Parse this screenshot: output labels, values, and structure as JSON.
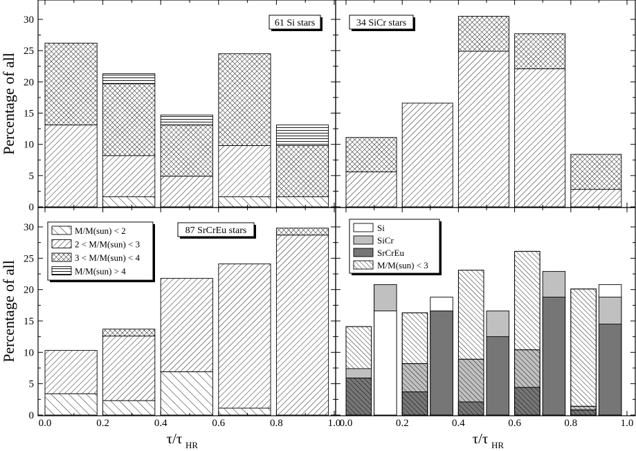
{
  "figure": {
    "xlabel_main": "τ/τ",
    "xlabel_sub": "HR",
    "ylabel": "Percentage of all",
    "x_ticks": [
      "0.0",
      "0.2",
      "0.4",
      "0.6",
      "0.8",
      "1.0"
    ],
    "y_ticks": [
      "0",
      "5",
      "10",
      "15",
      "20",
      "25",
      "30"
    ],
    "legend_mass": [
      {
        "label": "M/M(sun) < 2",
        "pattern": "diag-fwd"
      },
      {
        "label": "2 < M/M(sun) < 3",
        "pattern": "diag-back"
      },
      {
        "label": "3 < M/M(sun) < 4",
        "pattern": "crosshatch"
      },
      {
        "label": "M/M(sun) > 4",
        "pattern": "horizontal"
      }
    ],
    "legend_type": [
      {
        "label": "Si",
        "pattern": "white"
      },
      {
        "label": "SiCr",
        "pattern": "light-gray"
      },
      {
        "label": "SrCrEu",
        "pattern": "dark-gray"
      },
      {
        "label": "M/M(sun) < 3",
        "pattern": "diag-fwd-dense"
      }
    ],
    "colors": {
      "light_gray": "#c0c0c0",
      "dark_gray": "#767676",
      "ink": "#000000",
      "background": "#ffffff"
    }
  },
  "chart_data": [
    {
      "type": "bar",
      "stacked": true,
      "title": "61 Si stars",
      "ylim": [
        0,
        33
      ],
      "xlim": [
        0,
        1
      ],
      "bin_edges": [
        [
          0.0,
          0.18
        ],
        [
          0.2,
          0.38
        ],
        [
          0.4,
          0.58
        ],
        [
          0.6,
          0.78
        ],
        [
          0.8,
          0.98
        ]
      ],
      "series": [
        {
          "name": "M/M(sun) < 2",
          "values": [
            0,
            1.6,
            0,
            1.6,
            1.6
          ]
        },
        {
          "name": "2 < M/M(sun) < 3",
          "values": [
            13.1,
            6.6,
            4.9,
            8.2,
            0
          ]
        },
        {
          "name": "3 < M/M(sun) < 4",
          "values": [
            13.1,
            11.5,
            8.2,
            14.7,
            8.2
          ]
        },
        {
          "name": "M/M(sun) > 4",
          "values": [
            0,
            1.6,
            1.6,
            0,
            3.3
          ]
        }
      ]
    },
    {
      "type": "bar",
      "stacked": true,
      "title": "34 SiCr stars",
      "ylim": [
        0,
        33
      ],
      "xlim": [
        0,
        1
      ],
      "bin_edges": [
        [
          0.0,
          0.18
        ],
        [
          0.2,
          0.38
        ],
        [
          0.4,
          0.58
        ],
        [
          0.6,
          0.78
        ],
        [
          0.8,
          0.98
        ]
      ],
      "series": [
        {
          "name": "M/M(sun) < 2",
          "values": [
            0,
            0,
            0,
            0,
            0
          ]
        },
        {
          "name": "2 < M/M(sun) < 3",
          "values": [
            5.6,
            16.6,
            24.9,
            22.1,
            2.8
          ]
        },
        {
          "name": "3 < M/M(sun) < 4",
          "values": [
            5.5,
            0,
            5.6,
            5.6,
            5.6
          ]
        },
        {
          "name": "M/M(sun) > 4",
          "values": [
            0,
            0,
            0,
            0,
            0
          ]
        }
      ]
    },
    {
      "type": "bar",
      "stacked": true,
      "title": "87 SrCrEu stars",
      "ylim": [
        0,
        33
      ],
      "xlim": [
        0,
        1
      ],
      "bin_edges": [
        [
          0.0,
          0.18
        ],
        [
          0.2,
          0.38
        ],
        [
          0.4,
          0.58
        ],
        [
          0.6,
          0.78
        ],
        [
          0.8,
          0.98
        ]
      ],
      "series": [
        {
          "name": "M/M(sun) < 2",
          "values": [
            3.4,
            2.3,
            6.9,
            1.1,
            0
          ]
        },
        {
          "name": "2 < M/M(sun) < 3",
          "values": [
            6.9,
            10.3,
            14.9,
            23.0,
            28.7
          ]
        },
        {
          "name": "3 < M/M(sun) < 4",
          "values": [
            0,
            1.1,
            0,
            0,
            1.1
          ]
        },
        {
          "name": "M/M(sun) > 4",
          "values": [
            0,
            0,
            0,
            0,
            0
          ]
        }
      ]
    },
    {
      "type": "bar",
      "title": "",
      "ylim": [
        0,
        33
      ],
      "xlim": [
        0,
        1
      ],
      "groups": [
        {
          "x": [
            0.0,
            0.18
          ],
          "bars": [
            {
              "name": "Si",
              "edges": [
                0.0,
                0.09
              ],
              "total": 14.1,
              "low_mass": 14.1
            },
            {
              "name": "SiCr",
              "edges": [
                0.0,
                0.09
              ],
              "total": 7.4,
              "low_mass": 5.9
            },
            {
              "name": "SrCrEu",
              "edges": [
                0.0,
                0.09
              ],
              "total": 5.9,
              "low_mass": 5.9
            },
            {
              "name": "SrCrEu",
              "edges": [
                0.1,
                0.18
              ],
              "total": 20.8,
              "low_mass": 0
            },
            {
              "name": "SiCr",
              "edges": [
                0.1,
                0.18
              ],
              "total": 20.8,
              "low_mass": 0
            },
            {
              "name": "Si",
              "edges": [
                0.1,
                0.18
              ],
              "total": 16.6,
              "low_mass": 0
            }
          ]
        },
        {
          "x": [
            0.2,
            0.38
          ],
          "bars": [
            {
              "name": "Si",
              "edges": [
                0.2,
                0.29
              ],
              "total": 16.3,
              "low_mass": 16.3
            },
            {
              "name": "SiCr",
              "edges": [
                0.2,
                0.29
              ],
              "total": 8.2,
              "low_mass": 8.2
            },
            {
              "name": "SrCrEu",
              "edges": [
                0.2,
                0.29
              ],
              "total": 3.7,
              "low_mass": 3.7
            },
            {
              "name": "Si",
              "edges": [
                0.3,
                0.38
              ],
              "total": 18.8,
              "low_mass": 0
            },
            {
              "name": "SiCr",
              "edges": [
                0.3,
                0.38
              ],
              "total": 16.6,
              "low_mass": 0
            },
            {
              "name": "SrCrEu",
              "edges": [
                0.3,
                0.38
              ],
              "total": 16.6,
              "low_mass": 0
            }
          ]
        },
        {
          "x": [
            0.4,
            0.58
          ],
          "bars": [
            {
              "name": "Si",
              "edges": [
                0.4,
                0.49
              ],
              "total": 23.1,
              "low_mass": 23.1
            },
            {
              "name": "SiCr",
              "edges": [
                0.4,
                0.49
              ],
              "total": 8.9,
              "low_mass": 8.9
            },
            {
              "name": "SrCrEu",
              "edges": [
                0.4,
                0.49
              ],
              "total": 2.1,
              "low_mass": 2.1
            },
            {
              "name": "SiCr",
              "edges": [
                0.5,
                0.58
              ],
              "total": 16.6,
              "low_mass": 0
            },
            {
              "name": "SrCrEu",
              "edges": [
                0.5,
                0.58
              ],
              "total": 12.5,
              "low_mass": 0
            }
          ]
        },
        {
          "x": [
            0.6,
            0.78
          ],
          "bars": [
            {
              "name": "Si",
              "edges": [
                0.6,
                0.69
              ],
              "total": 26.1,
              "low_mass": 26.1
            },
            {
              "name": "SiCr",
              "edges": [
                0.6,
                0.69
              ],
              "total": 10.4,
              "low_mass": 10.4
            },
            {
              "name": "SrCrEu",
              "edges": [
                0.6,
                0.69
              ],
              "total": 4.4,
              "low_mass": 4.4
            },
            {
              "name": "SiCr",
              "edges": [
                0.7,
                0.78
              ],
              "total": 22.9,
              "low_mass": 0
            },
            {
              "name": "SrCrEu",
              "edges": [
                0.7,
                0.78
              ],
              "total": 18.8,
              "low_mass": 0
            }
          ]
        },
        {
          "x": [
            0.8,
            0.98
          ],
          "bars": [
            {
              "name": "Si",
              "edges": [
                0.8,
                0.89
              ],
              "total": 20.1,
              "low_mass": 20.1
            },
            {
              "name": "SiCr",
              "edges": [
                0.8,
                0.89
              ],
              "total": 1.4,
              "low_mass": 1.4
            },
            {
              "name": "SrCrEu",
              "edges": [
                0.8,
                0.89
              ],
              "total": 0.8,
              "low_mass": 0.8
            },
            {
              "name": "Si",
              "edges": [
                0.9,
                0.98
              ],
              "total": 20.8,
              "low_mass": 0
            },
            {
              "name": "SiCr",
              "edges": [
                0.9,
                0.98
              ],
              "total": 18.8,
              "low_mass": 0
            },
            {
              "name": "SrCrEu",
              "edges": [
                0.9,
                0.98
              ],
              "total": 14.5,
              "low_mass": 0
            }
          ]
        }
      ]
    }
  ]
}
